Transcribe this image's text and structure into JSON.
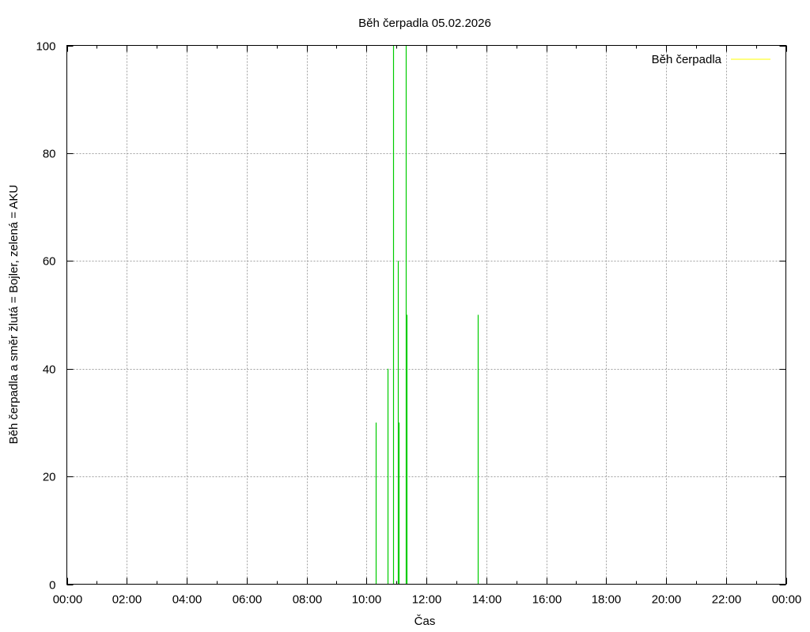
{
  "chart_data": {
    "type": "line",
    "title": "Běh čerpadla 05.02.2026",
    "xlabel": "Čas",
    "ylabel": "Běh čerpadla a směr žlutá = Bojler, zelená = AKU",
    "xlim_hours": [
      0,
      24
    ],
    "ylim": [
      0,
      100
    ],
    "x_ticks": [
      "00:00",
      "02:00",
      "04:00",
      "06:00",
      "08:00",
      "10:00",
      "12:00",
      "14:00",
      "16:00",
      "18:00",
      "20:00",
      "22:00",
      "00:00"
    ],
    "y_ticks": [
      0,
      20,
      40,
      60,
      80,
      100
    ],
    "grid": true,
    "legend_position": "top-right",
    "series": [
      {
        "name": "Běh čerpadla",
        "color": "#ffff00",
        "points": []
      },
      {
        "color": "#00cc00",
        "points": [
          {
            "x": "10:18",
            "y": 30
          },
          {
            "x": "10:42",
            "y": 40
          },
          {
            "x": "10:54",
            "y": 100
          },
          {
            "x": "11:03",
            "y": 60
          },
          {
            "x": "11:05",
            "y": 30
          },
          {
            "x": "11:19",
            "y": 100
          },
          {
            "x": "11:21",
            "y": 50
          },
          {
            "x": "13:43",
            "y": 50
          }
        ]
      }
    ]
  }
}
